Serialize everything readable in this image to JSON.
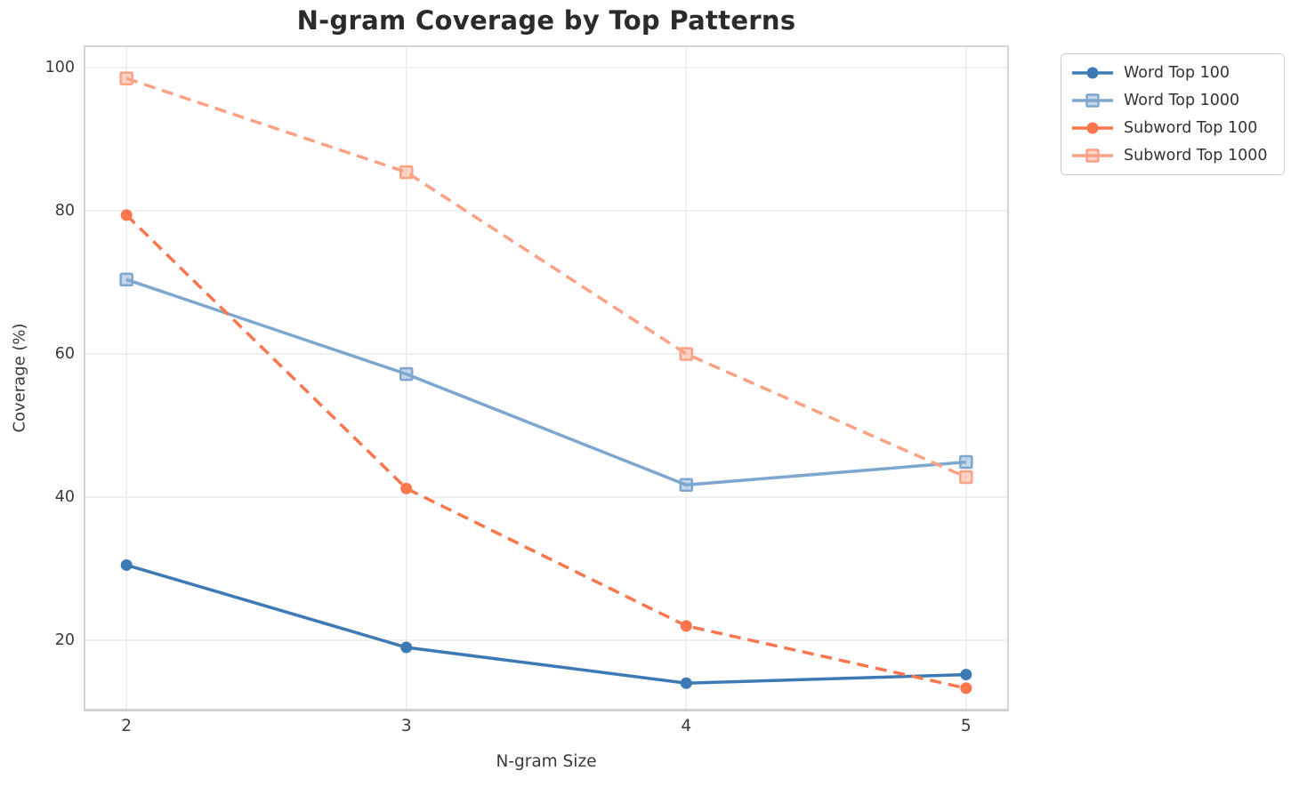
{
  "chart_data": {
    "type": "line",
    "title": "N-gram Coverage by Top Patterns",
    "xlabel": "N-gram Size",
    "ylabel": "Coverage (%)",
    "x": [
      2,
      3,
      4,
      5
    ],
    "xticks": [
      "2",
      "3",
      "4",
      "5"
    ],
    "yticks": [
      20,
      40,
      60,
      80,
      100
    ],
    "xlim": [
      1.85,
      5.15
    ],
    "ylim": [
      10.3,
      103
    ],
    "grid": true,
    "legend_position": "outside-upper-right",
    "series": [
      {
        "name": "Word Top 100",
        "color": "#3d7ab5",
        "linestyle": "solid",
        "marker": "circle",
        "values": [
          30.5,
          19.0,
          14.0,
          15.2
        ]
      },
      {
        "name": "Word Top 1000",
        "color": "#7ea7cf",
        "linestyle": "solid",
        "marker": "square",
        "values": [
          70.4,
          57.2,
          41.7,
          44.9
        ]
      },
      {
        "name": "Subword Top 100",
        "color": "#fa764d",
        "linestyle": "dashed",
        "marker": "circle",
        "values": [
          79.4,
          41.2,
          22.0,
          13.3
        ]
      },
      {
        "name": "Subword Top 1000",
        "color": "#fba184",
        "linestyle": "dashed",
        "marker": "square",
        "values": [
          98.5,
          85.4,
          60.0,
          42.8
        ]
      }
    ]
  },
  "styles": {
    "background": "#ffffff",
    "grid_color": "#ececec",
    "spine_color": "#d4d4d4",
    "tick_text_color": "#3a3a3a",
    "title_color": "#2b2b2b",
    "legend_border_color": "#cccccc"
  }
}
